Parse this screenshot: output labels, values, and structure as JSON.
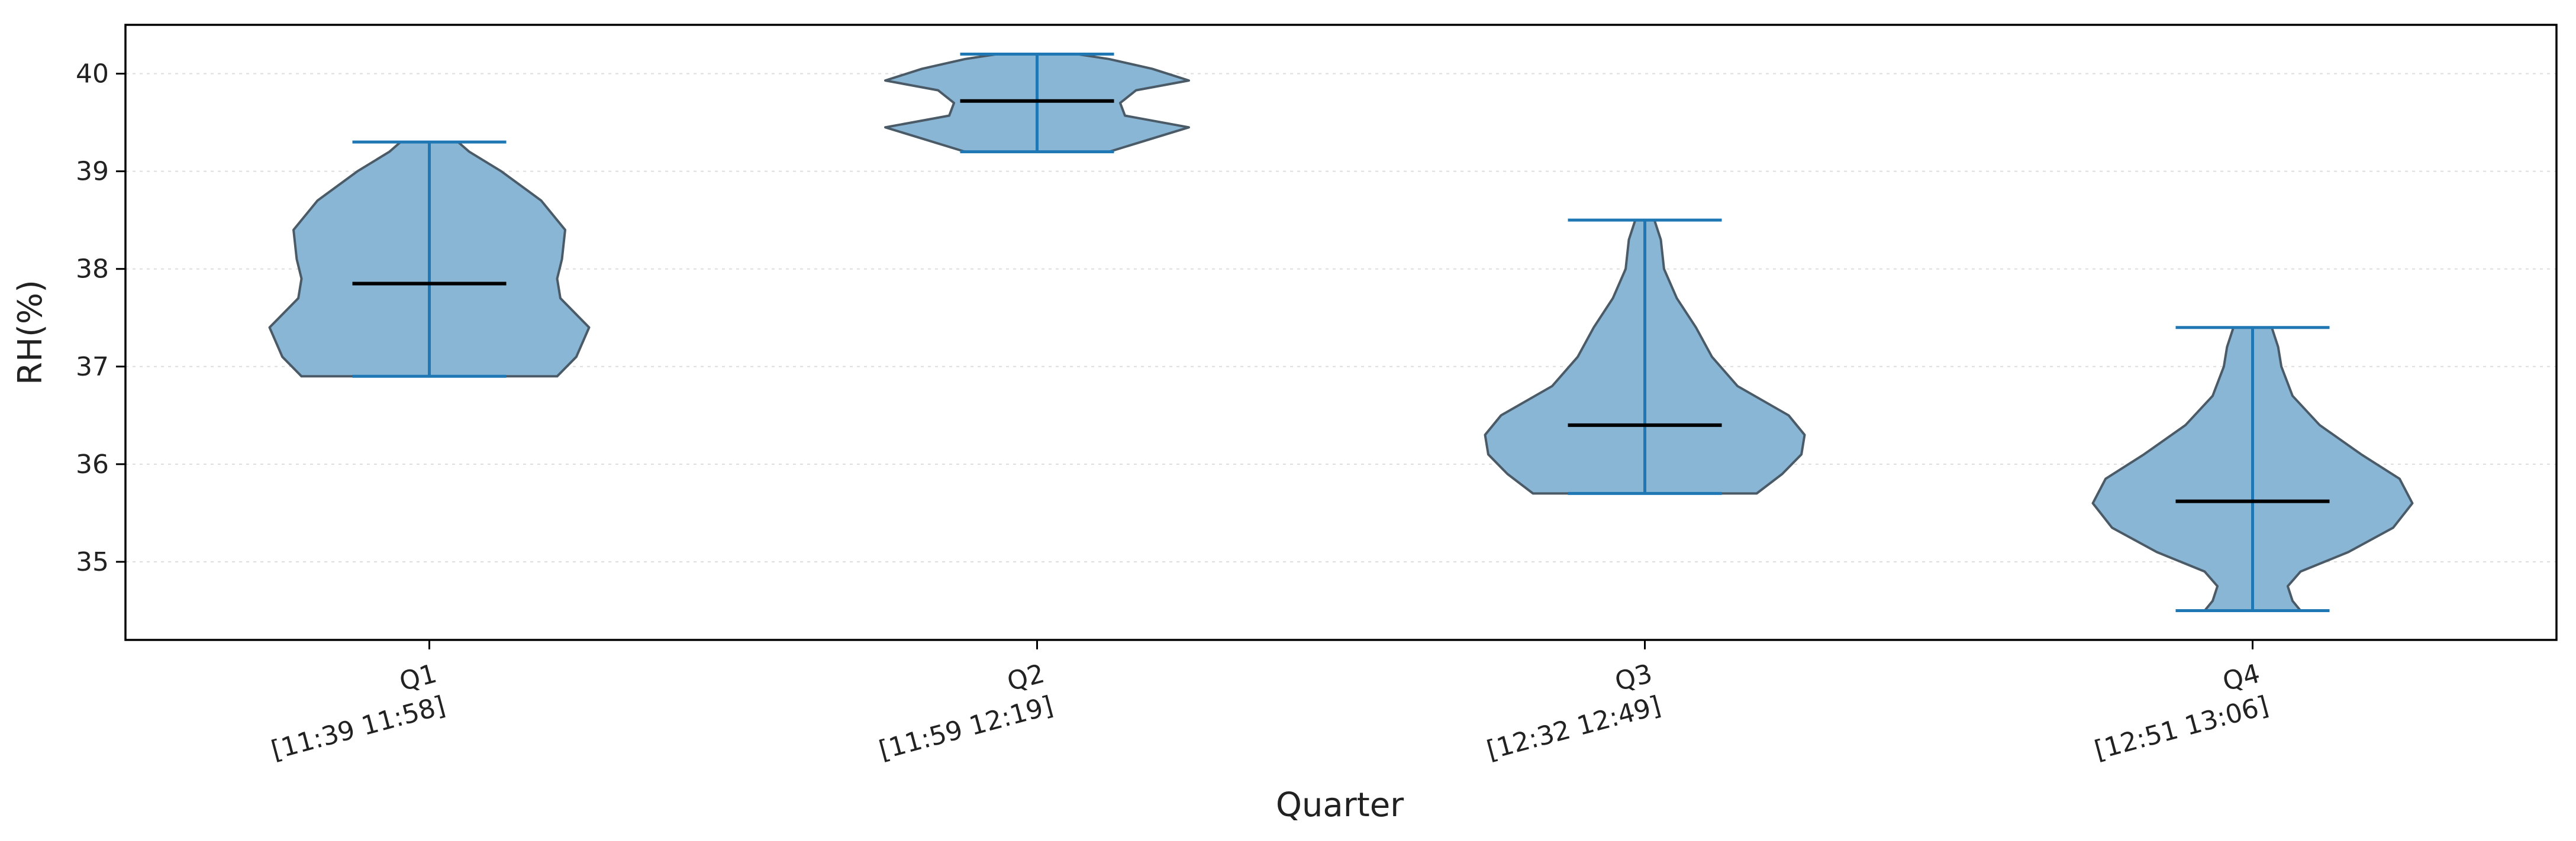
{
  "chart_data": {
    "type": "violin",
    "xlabel": "Quarter",
    "ylabel": "RH(%)",
    "ylim": [
      34.2,
      40.5
    ],
    "yticks": [
      35,
      36,
      37,
      38,
      39,
      40
    ],
    "grid": "y-dotted",
    "colors": {
      "body_fill": "#8ab6d6",
      "body_edge": "#4a5a66",
      "whisker": "#1f77b4",
      "median": "#000000",
      "grid": "#dddddd",
      "frame": "#000000"
    },
    "categories": [
      {
        "label": "Q1",
        "range": "[11:39 11:58]"
      },
      {
        "label": "Q2",
        "range": "[11:59 12:19]"
      },
      {
        "label": "Q3",
        "range": "[12:32 12:49]"
      },
      {
        "label": "Q4",
        "range": "[12:51 13:06]"
      }
    ],
    "series": [
      {
        "min": 36.9,
        "max": 39.3,
        "median": 37.85,
        "profile": [
          [
            36.9,
            0.8
          ],
          [
            37.1,
            0.92
          ],
          [
            37.4,
            1.0
          ],
          [
            37.7,
            0.82
          ],
          [
            37.9,
            0.8
          ],
          [
            38.1,
            0.83
          ],
          [
            38.4,
            0.85
          ],
          [
            38.7,
            0.7
          ],
          [
            39.0,
            0.45
          ],
          [
            39.2,
            0.25
          ],
          [
            39.3,
            0.18
          ]
        ]
      },
      {
        "min": 39.2,
        "max": 40.2,
        "median": 39.72,
        "profile": [
          [
            39.2,
            0.45
          ],
          [
            39.35,
            0.75
          ],
          [
            39.45,
            0.95
          ],
          [
            39.57,
            0.55
          ],
          [
            39.7,
            0.52
          ],
          [
            39.83,
            0.62
          ],
          [
            39.93,
            0.95
          ],
          [
            40.05,
            0.72
          ],
          [
            40.15,
            0.45
          ],
          [
            40.2,
            0.25
          ]
        ]
      },
      {
        "min": 35.7,
        "max": 38.5,
        "median": 36.4,
        "profile": [
          [
            35.7,
            0.7
          ],
          [
            35.9,
            0.86
          ],
          [
            36.1,
            0.98
          ],
          [
            36.3,
            1.0
          ],
          [
            36.5,
            0.9
          ],
          [
            36.8,
            0.58
          ],
          [
            37.1,
            0.42
          ],
          [
            37.4,
            0.32
          ],
          [
            37.7,
            0.2
          ],
          [
            38.0,
            0.12
          ],
          [
            38.3,
            0.1
          ],
          [
            38.5,
            0.06
          ]
        ]
      },
      {
        "min": 34.5,
        "max": 37.4,
        "median": 35.62,
        "profile": [
          [
            34.5,
            0.3
          ],
          [
            34.6,
            0.25
          ],
          [
            34.75,
            0.22
          ],
          [
            34.9,
            0.3
          ],
          [
            35.1,
            0.6
          ],
          [
            35.35,
            0.88
          ],
          [
            35.6,
            1.0
          ],
          [
            35.85,
            0.92
          ],
          [
            36.1,
            0.68
          ],
          [
            36.4,
            0.42
          ],
          [
            36.7,
            0.25
          ],
          [
            37.0,
            0.18
          ],
          [
            37.2,
            0.16
          ],
          [
            37.4,
            0.12
          ]
        ]
      }
    ]
  }
}
